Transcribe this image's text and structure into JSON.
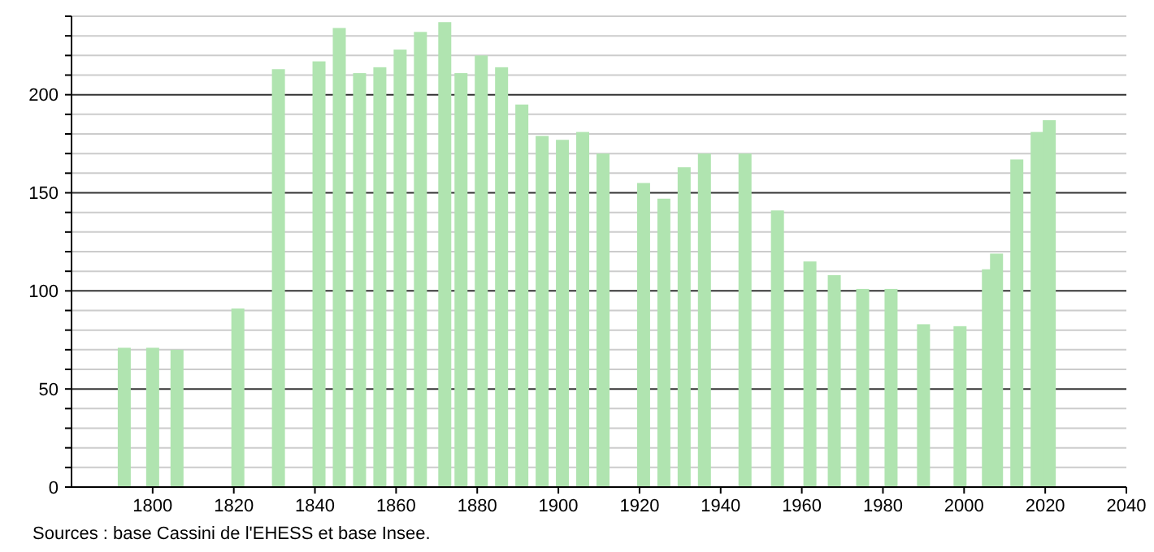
{
  "chart_data": {
    "type": "bar",
    "x": [
      1793,
      1800,
      1806,
      1821,
      1831,
      1841,
      1846,
      1851,
      1856,
      1861,
      1866,
      1872,
      1876,
      1881,
      1886,
      1891,
      1896,
      1901,
      1906,
      1911,
      1921,
      1926,
      1931,
      1936,
      1946,
      1954,
      1962,
      1968,
      1975,
      1982,
      1990,
      1999,
      2006,
      2008,
      2013,
      2018,
      2021
    ],
    "values": [
      71,
      71,
      70,
      91,
      213,
      217,
      234,
      211,
      214,
      223,
      232,
      237,
      211,
      220,
      214,
      195,
      179,
      177,
      181,
      170,
      155,
      147,
      163,
      170,
      170,
      141,
      115,
      108,
      101,
      101,
      83,
      82,
      111,
      119,
      167,
      181,
      187
    ],
    "color": "#b0e4b0",
    "xlim": [
      1780,
      2040
    ],
    "xticks": [
      1800,
      1820,
      1840,
      1860,
      1880,
      1900,
      1920,
      1940,
      1960,
      1980,
      2000,
      2020,
      2040
    ],
    "ylim": [
      0,
      240
    ],
    "yticks": [
      0,
      {
        "value": 10,
        "label": null
      },
      {
        "value": 20,
        "label": null
      },
      {
        "value": 30,
        "label": null
      },
      {
        "value": 40,
        "label": null
      },
      50,
      {
        "value": 60,
        "label": null
      },
      {
        "value": 70,
        "label": null
      },
      {
        "value": 80,
        "label": null
      },
      {
        "value": 90,
        "label": null
      },
      100,
      {
        "value": 110,
        "label": null
      },
      {
        "value": 120,
        "label": null
      },
      {
        "value": 130,
        "label": null
      },
      {
        "value": 140,
        "label": null
      },
      150,
      {
        "value": 160,
        "label": null
      },
      {
        "value": 170,
        "label": null
      },
      {
        "value": 180,
        "label": null
      },
      {
        "value": 190,
        "label": null
      },
      200,
      {
        "value": 210,
        "label": null
      },
      {
        "value": 220,
        "label": null
      },
      {
        "value": 230,
        "label": null
      },
      {
        "value": 240,
        "label": null
      }
    ],
    "grid": "y",
    "annotations": [
      "Sources : base Cassini de l'EHESS et base Insee."
    ]
  }
}
